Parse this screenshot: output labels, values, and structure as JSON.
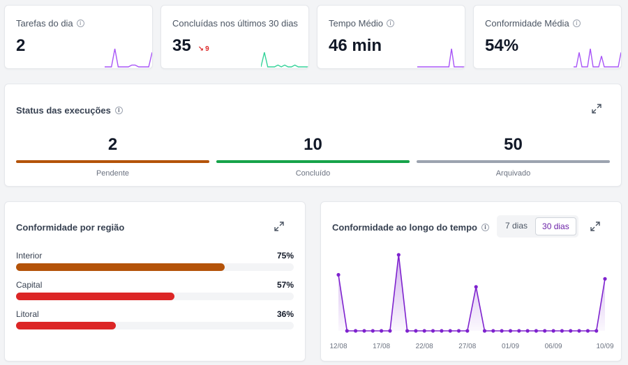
{
  "stats": [
    {
      "title": "Tarefas do dia",
      "value": "2",
      "delta": "",
      "spark_color": "#a855f7",
      "spark": [
        0,
        0,
        0,
        1,
        0,
        0,
        0,
        0,
        0.1,
        0.1,
        0,
        0,
        0,
        0,
        0.8
      ]
    },
    {
      "title": "Concluídas nos últimos 30 dias",
      "value": "35",
      "delta": "9",
      "spark_color": "#34d399",
      "spark": [
        0,
        0.8,
        0,
        0,
        0,
        0.1,
        0,
        0.1,
        0,
        0,
        0.1,
        0,
        0,
        0,
        0
      ]
    },
    {
      "title": "Tempo Médio",
      "value": "46 min",
      "delta": "",
      "spark_color": "#a855f7",
      "spark": [
        0,
        0,
        0,
        0,
        0,
        0,
        0,
        0,
        0,
        0,
        0,
        0,
        0,
        1,
        0,
        0,
        0,
        0,
        0
      ]
    },
    {
      "title": "Conformidade Média",
      "value": "54%",
      "delta": "",
      "spark_color": "#a855f7",
      "spark": [
        0,
        0,
        0.8,
        0,
        0,
        0,
        1,
        0,
        0,
        0,
        0.6,
        0,
        0,
        0,
        0,
        0,
        0,
        0.8
      ]
    }
  ],
  "status": {
    "title": "Status das execuções",
    "items": [
      {
        "value": "2",
        "label": "Pendente",
        "color": "#b45309"
      },
      {
        "value": "10",
        "label": "Concluído",
        "color": "#16a34a"
      },
      {
        "value": "50",
        "label": "Arquivado",
        "color": "#9ca3af"
      }
    ]
  },
  "regions": {
    "title": "Conformidade por região",
    "items": [
      {
        "name": "Interior",
        "pct": "75%",
        "value": 75,
        "color": "#b45309"
      },
      {
        "name": "Capital",
        "pct": "57%",
        "value": 57,
        "color": "#dc2626"
      },
      {
        "name": "Litoral",
        "pct": "36%",
        "value": 36,
        "color": "#dc2626"
      }
    ]
  },
  "timeline": {
    "title": "Conformidade ao longo do tempo",
    "toggle": [
      "7 dias",
      "30 dias"
    ],
    "active": "30 dias"
  },
  "chart_data": {
    "type": "area",
    "title": "Conformidade ao longo do tempo",
    "x_ticks": [
      "12/08",
      "17/08",
      "22/08",
      "27/08",
      "01/09",
      "06/09",
      "10/09"
    ],
    "values": [
      70,
      0,
      0,
      0,
      0,
      0,
      0,
      95,
      0,
      0,
      0,
      0,
      0,
      0,
      0,
      0,
      55,
      0,
      0,
      0,
      0,
      0,
      0,
      0,
      0,
      0,
      0,
      0,
      0,
      0,
      0,
      65
    ],
    "color": "#7e22ce"
  }
}
